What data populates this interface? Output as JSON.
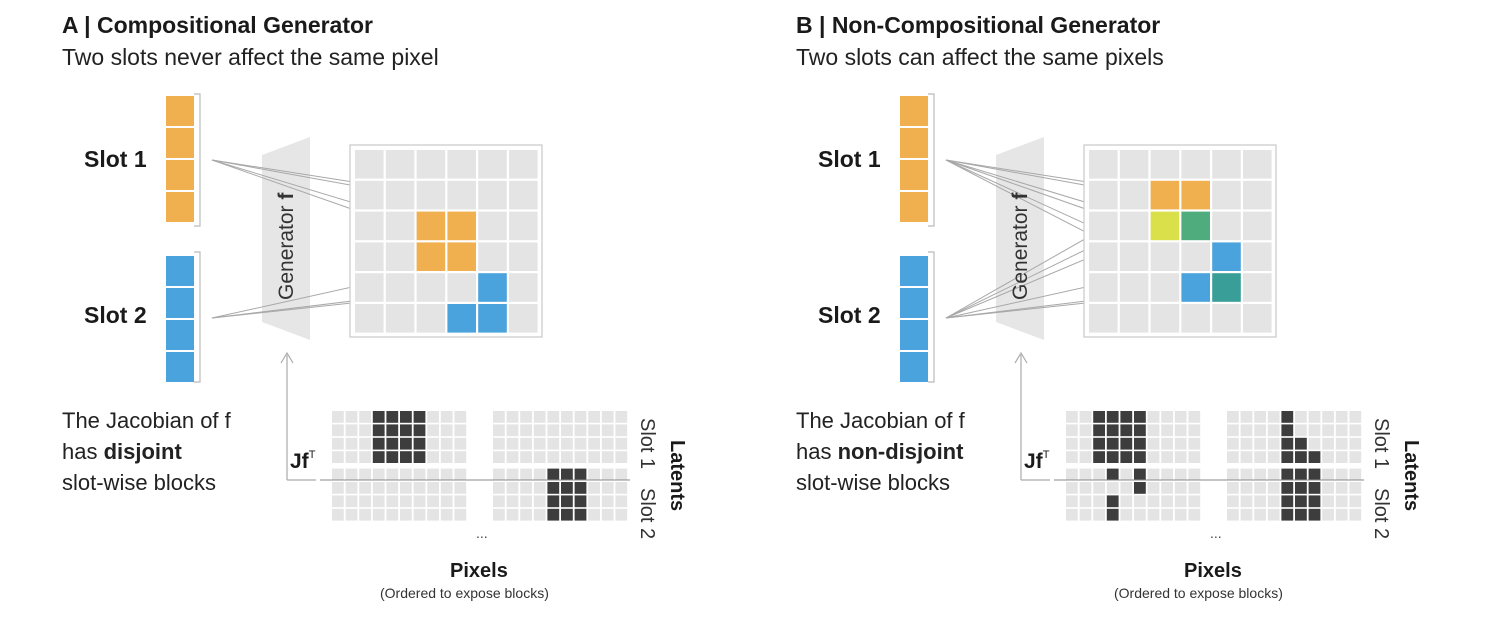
{
  "panels": [
    {
      "title": "A | Compositional Generator",
      "subtitle": "Two slots never affect the same pixel",
      "slot1_label": "Slot 1",
      "slot2_label": "Slot 2",
      "generator_label": "Generator",
      "generator_symbol": "f",
      "jacobian_text_1": "The Jacobian of f",
      "jacobian_text_2a": "has ",
      "jacobian_text_2b": "disjoint",
      "jacobian_text_3": "slot-wise blocks",
      "jf_label": "Jf",
      "jf_superscript": "T",
      "slot1_row_label": "Slot 1",
      "slot2_row_label": "Slot 2",
      "latents_label": "Latents",
      "ellipsis": "...",
      "pixels_label": "Pixels",
      "pixels_sub": "(Ordered to expose blocks)",
      "image_grid": [
        "......",
        "......",
        "..OO..",
        "..OO..",
        "....B.",
        "...BB.",
        "......"
      ],
      "jacobian_rows": [
        "..XXXX...",
        "..XXXX...",
        "..XXXX...",
        "..XXXX...",
        ".........",
        ".........",
        ".........",
        ".........",
        ".......",
        ".......",
        ".......",
        ".......",
        "...XXX.",
        "...XXX.",
        "...XXX.",
        "...XXX."
      ]
    },
    {
      "title": "B | Non-Compositional Generator",
      "subtitle": "Two slots can affect the same pixels",
      "slot1_label": "Slot 1",
      "slot2_label": "Slot 2",
      "generator_label": "Generator",
      "generator_symbol": "f",
      "jacobian_text_1": "The Jacobian of f",
      "jacobian_text_2a": "has ",
      "jacobian_text_2b": "non-disjoint",
      "jacobian_text_3": "slot-wise blocks",
      "jf_label": "Jf",
      "jf_superscript": "T",
      "slot1_row_label": "Slot 1",
      "slot2_row_label": "Slot 2",
      "latents_label": "Latents",
      "ellipsis": "...",
      "pixels_label": "Pixels",
      "pixels_sub": "(Ordered to expose blocks)"
    }
  ],
  "colors": {
    "orange": "#f0b04f",
    "blue": "#4aa3dc",
    "yellow_green": "#d9e04a",
    "green": "#4fac7c",
    "teal": "#3a9e98",
    "cell_gray": "#e4e4e4",
    "dark_cell": "#3d3d3d",
    "generator_gray": "#e6e6e6",
    "line_gray": "#a8a8a8"
  }
}
